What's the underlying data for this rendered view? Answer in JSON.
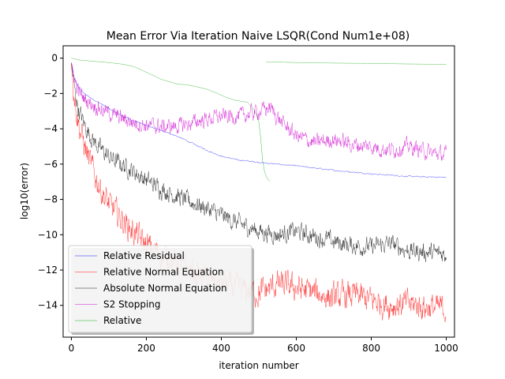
{
  "chart_data": {
    "type": "line",
    "title": "Mean Error Via Iteration Naive LSQR(Cond Num1e+08)",
    "xlabel": "iteration number",
    "ylabel": "log10(error)",
    "xlim": [
      -22,
      1022
    ],
    "ylim": [
      -15.8,
      0.7
    ],
    "xticks": [
      0,
      200,
      400,
      600,
      800,
      1000
    ],
    "yticks": [
      0,
      -2,
      -4,
      -6,
      -8,
      -10,
      -12,
      -14
    ],
    "xtick_labels": [
      "0",
      "200",
      "400",
      "600",
      "800",
      "1000"
    ],
    "ytick_labels": [
      "0",
      "−2",
      "−4",
      "−6",
      "−8",
      "−10",
      "−12",
      "−14"
    ],
    "legend_position": "lower-left",
    "series": [
      {
        "name": "Relative Residual",
        "color": "#0000ff",
        "noise": 0.03,
        "points": [
          [
            0,
            -0.3
          ],
          [
            5,
            -0.9
          ],
          [
            10,
            -1.3
          ],
          [
            20,
            -1.7
          ],
          [
            40,
            -2.1
          ],
          [
            80,
            -2.6
          ],
          [
            120,
            -3.1
          ],
          [
            160,
            -3.5
          ],
          [
            200,
            -3.8
          ],
          [
            240,
            -4.1
          ],
          [
            280,
            -4.4
          ],
          [
            320,
            -4.8
          ],
          [
            360,
            -5.2
          ],
          [
            400,
            -5.55
          ],
          [
            440,
            -5.75
          ],
          [
            480,
            -5.85
          ],
          [
            520,
            -5.95
          ],
          [
            600,
            -6.1
          ],
          [
            700,
            -6.35
          ],
          [
            800,
            -6.55
          ],
          [
            900,
            -6.7
          ],
          [
            1000,
            -6.75
          ]
        ]
      },
      {
        "name": "Relative Normal Equation",
        "color": "#ff0000",
        "noise": 0.6,
        "points": [
          [
            0,
            -0.3
          ],
          [
            5,
            -1.5
          ],
          [
            10,
            -2.5
          ],
          [
            20,
            -3.8
          ],
          [
            40,
            -5.3
          ],
          [
            60,
            -6.5
          ],
          [
            80,
            -7.5
          ],
          [
            100,
            -8.3
          ],
          [
            150,
            -9.5
          ],
          [
            200,
            -10.6
          ],
          [
            250,
            -11.3
          ],
          [
            300,
            -11.8
          ],
          [
            350,
            -12.4
          ],
          [
            400,
            -12.8
          ],
          [
            450,
            -13.1
          ],
          [
            500,
            -13.3
          ],
          [
            550,
            -12.8
          ],
          [
            600,
            -13.0
          ],
          [
            650,
            -13.3
          ],
          [
            700,
            -13.6
          ],
          [
            750,
            -13.4
          ],
          [
            800,
            -13.7
          ],
          [
            850,
            -14.0
          ],
          [
            900,
            -13.9
          ],
          [
            950,
            -14.1
          ],
          [
            1000,
            -14.2
          ]
        ]
      },
      {
        "name": "Absolute Normal Equation",
        "color": "#000000",
        "noise": 0.4,
        "points": [
          [
            0,
            -0.3
          ],
          [
            5,
            -1.2
          ],
          [
            10,
            -2.0
          ],
          [
            20,
            -3.0
          ],
          [
            40,
            -4.0
          ],
          [
            60,
            -4.7
          ],
          [
            80,
            -5.2
          ],
          [
            100,
            -5.6
          ],
          [
            150,
            -6.2
          ],
          [
            200,
            -6.9
          ],
          [
            250,
            -7.5
          ],
          [
            300,
            -8.0
          ],
          [
            350,
            -8.4
          ],
          [
            400,
            -8.9
          ],
          [
            450,
            -9.4
          ],
          [
            500,
            -9.8
          ],
          [
            550,
            -10.0
          ],
          [
            600,
            -9.8
          ],
          [
            650,
            -10.1
          ],
          [
            700,
            -10.4
          ],
          [
            750,
            -10.6
          ],
          [
            800,
            -10.7
          ],
          [
            850,
            -10.5
          ],
          [
            900,
            -10.9
          ],
          [
            950,
            -11.0
          ],
          [
            1000,
            -11.1
          ]
        ]
      },
      {
        "name": "S2 Stopping",
        "color": "#cc00cc",
        "noise": 0.35,
        "points": [
          [
            0,
            -0.3
          ],
          [
            5,
            -0.8
          ],
          [
            10,
            -1.3
          ],
          [
            20,
            -1.9
          ],
          [
            40,
            -2.4
          ],
          [
            80,
            -2.9
          ],
          [
            120,
            -3.3
          ],
          [
            160,
            -3.6
          ],
          [
            200,
            -3.8
          ],
          [
            250,
            -3.9
          ],
          [
            300,
            -3.8
          ],
          [
            350,
            -3.5
          ],
          [
            400,
            -3.3
          ],
          [
            450,
            -3.3
          ],
          [
            500,
            -3.0
          ],
          [
            530,
            -2.8
          ],
          [
            560,
            -3.6
          ],
          [
            600,
            -4.4
          ],
          [
            650,
            -4.8
          ],
          [
            700,
            -4.6
          ],
          [
            750,
            -4.9
          ],
          [
            800,
            -5.0
          ],
          [
            850,
            -5.2
          ],
          [
            900,
            -5.0
          ],
          [
            950,
            -5.3
          ],
          [
            1000,
            -5.5
          ]
        ]
      },
      {
        "name": "Relative",
        "color": "#00aa00",
        "noise": 0.0,
        "points": [
          [
            0,
            0.0
          ],
          [
            20,
            -0.1
          ],
          [
            60,
            -0.18
          ],
          [
            100,
            -0.25
          ],
          [
            140,
            -0.35
          ],
          [
            170,
            -0.5
          ],
          [
            200,
            -0.8
          ],
          [
            240,
            -1.2
          ],
          [
            280,
            -1.45
          ],
          [
            320,
            -1.55
          ],
          [
            360,
            -1.75
          ],
          [
            390,
            -2.0
          ],
          [
            410,
            -2.2
          ],
          [
            440,
            -2.4
          ],
          [
            470,
            -2.5
          ],
          [
            490,
            -3.0
          ],
          [
            500,
            -3.6
          ],
          [
            505,
            -4.5
          ],
          [
            510,
            -5.8
          ],
          [
            515,
            -6.4
          ],
          [
            520,
            -6.7
          ],
          [
            525,
            -6.9
          ],
          [
            530,
            -6.95
          ]
        ]
      }
    ]
  },
  "secondary_relative_green_tail": {
    "color": "#00aa00",
    "points": [
      [
        520,
        -0.2
      ],
      [
        600,
        -0.25
      ],
      [
        700,
        -0.28
      ],
      [
        800,
        -0.3
      ],
      [
        900,
        -0.33
      ],
      [
        1000,
        -0.35
      ]
    ]
  }
}
